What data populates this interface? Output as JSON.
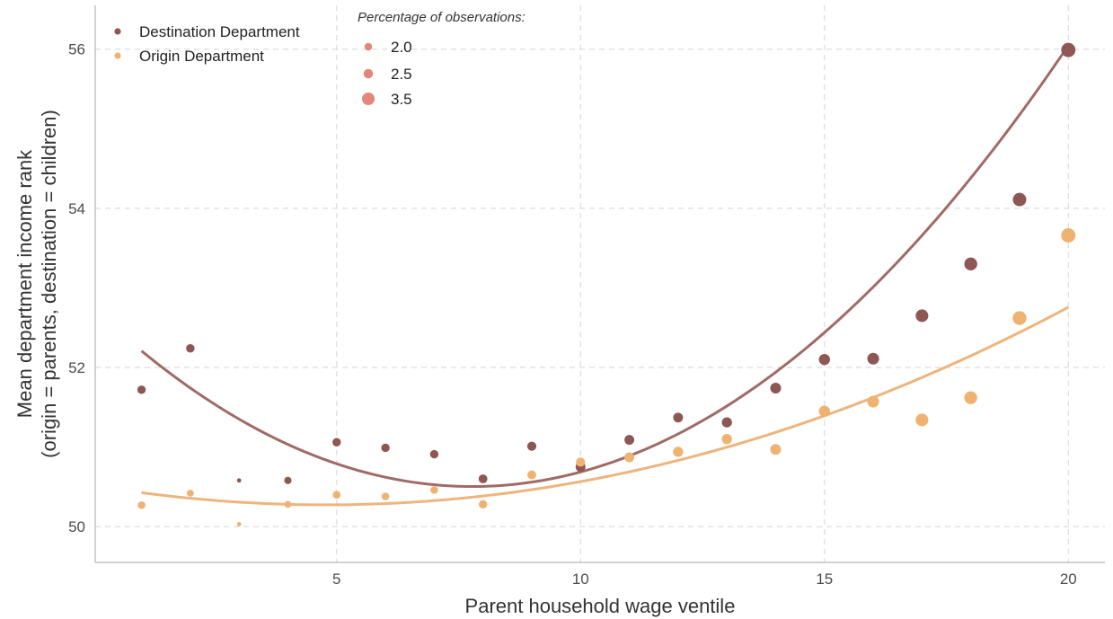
{
  "chart_data": {
    "type": "scatter",
    "xlabel": "Parent household wage ventile",
    "ylabel_lines": [
      "Mean department income rank",
      "(origin = parents, destination = children)"
    ],
    "xlim": [
      0.05,
      20.75
    ],
    "ylim": [
      49.55,
      56.55
    ],
    "x_ticks": [
      5,
      10,
      15,
      20
    ],
    "y_ticks": [
      50,
      52,
      54,
      56
    ],
    "grid": true,
    "legend_placement": "top-left",
    "size_legend": {
      "title": "Percentage of observations:",
      "values": [
        2.0,
        2.5,
        3.5
      ],
      "labels": [
        "2.0",
        "2.5",
        "3.5"
      ],
      "color": "#e3877c"
    },
    "series": [
      {
        "name": "Destination Department",
        "color": "#8e5754",
        "line_color": "#a06b66",
        "x": [
          1,
          2,
          3,
          4,
          5,
          6,
          7,
          8,
          9,
          10,
          11,
          12,
          13,
          14,
          15,
          16,
          17,
          18,
          19,
          20
        ],
        "y": [
          51.72,
          52.24,
          50.58,
          50.58,
          51.06,
          50.99,
          50.91,
          50.6,
          51.01,
          50.75,
          51.09,
          51.37,
          51.31,
          51.74,
          52.1,
          52.11,
          52.65,
          53.3,
          54.11,
          55.99
        ],
        "pct": [
          2.2,
          2.2,
          1.2,
          1.9,
          2.2,
          2.2,
          2.2,
          2.3,
          2.4,
          2.6,
          2.6,
          2.6,
          2.7,
          2.9,
          3.0,
          3.2,
          3.5,
          3.6,
          3.8,
          4.1
        ],
        "fit_quadratic": [
          52.7475,
          -0.5771,
          0.0371
        ]
      },
      {
        "name": "Origin Department",
        "color": "#efb271",
        "line_color": "#eeb47d",
        "x": [
          1,
          2,
          3,
          4,
          5,
          6,
          7,
          8,
          9,
          10,
          11,
          12,
          13,
          14,
          15,
          16,
          17,
          18,
          19,
          20
        ],
        "y": [
          50.27,
          50.42,
          50.03,
          50.28,
          50.4,
          50.38,
          50.46,
          50.28,
          50.65,
          50.81,
          50.87,
          50.94,
          51.1,
          50.97,
          51.45,
          51.57,
          51.34,
          51.62,
          52.62,
          53.66
        ],
        "pct": [
          2.0,
          1.8,
          1.2,
          1.8,
          2.0,
          2.0,
          2.0,
          2.2,
          2.3,
          2.4,
          2.6,
          2.7,
          2.7,
          2.9,
          3.0,
          3.2,
          3.5,
          3.6,
          3.9,
          4.1
        ],
        "fit_quadratic": [
          50.5184,
          -0.1025,
          0.01072
        ]
      }
    ]
  }
}
